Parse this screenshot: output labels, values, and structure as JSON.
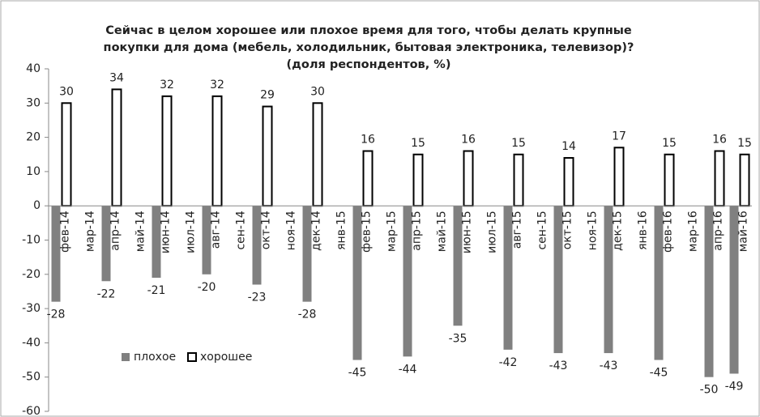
{
  "chart_data": {
    "type": "bar",
    "title": "Сейчас в целом хорошее или плохое время для того, чтобы делать крупные  покупки для дома (мебель, холодильник, бытовая электроника, телевизор)? (доля респондентов, %)",
    "categories": [
      "фев-14",
      "мар-14",
      "апр-14",
      "май-14",
      "июн-14",
      "июл-14",
      "авг-14",
      "сен-14",
      "окт-14",
      "ноя-14",
      "дек-14",
      "янв-15",
      "фев-15",
      "мар-15",
      "апр-15",
      "май-15",
      "июн-15",
      "июл-15",
      "авг-15",
      "сен-15",
      "окт-15",
      "ноя-15",
      "дек-15",
      "янв-16",
      "фев-16",
      "мар-16",
      "апр-16",
      "май-16"
    ],
    "series": [
      {
        "name": "плохое",
        "color": "#808080",
        "values": [
          -28,
          null,
          -22,
          null,
          -21,
          null,
          -20,
          null,
          -23,
          null,
          -28,
          null,
          -45,
          null,
          -44,
          null,
          -35,
          null,
          -42,
          null,
          -43,
          null,
          -43,
          null,
          -45,
          null,
          -50,
          -49
        ]
      },
      {
        "name": "хорошее",
        "color": "#ffffff",
        "values": [
          30,
          null,
          34,
          null,
          32,
          null,
          32,
          null,
          29,
          null,
          30,
          null,
          16,
          null,
          15,
          null,
          16,
          null,
          15,
          null,
          14,
          null,
          17,
          null,
          15,
          null,
          16,
          15
        ]
      }
    ],
    "ylim": [
      -60,
      40
    ],
    "yticks": [
      -60,
      -50,
      -40,
      -30,
      -20,
      -10,
      0,
      10,
      20,
      30,
      40
    ],
    "grid": false
  }
}
